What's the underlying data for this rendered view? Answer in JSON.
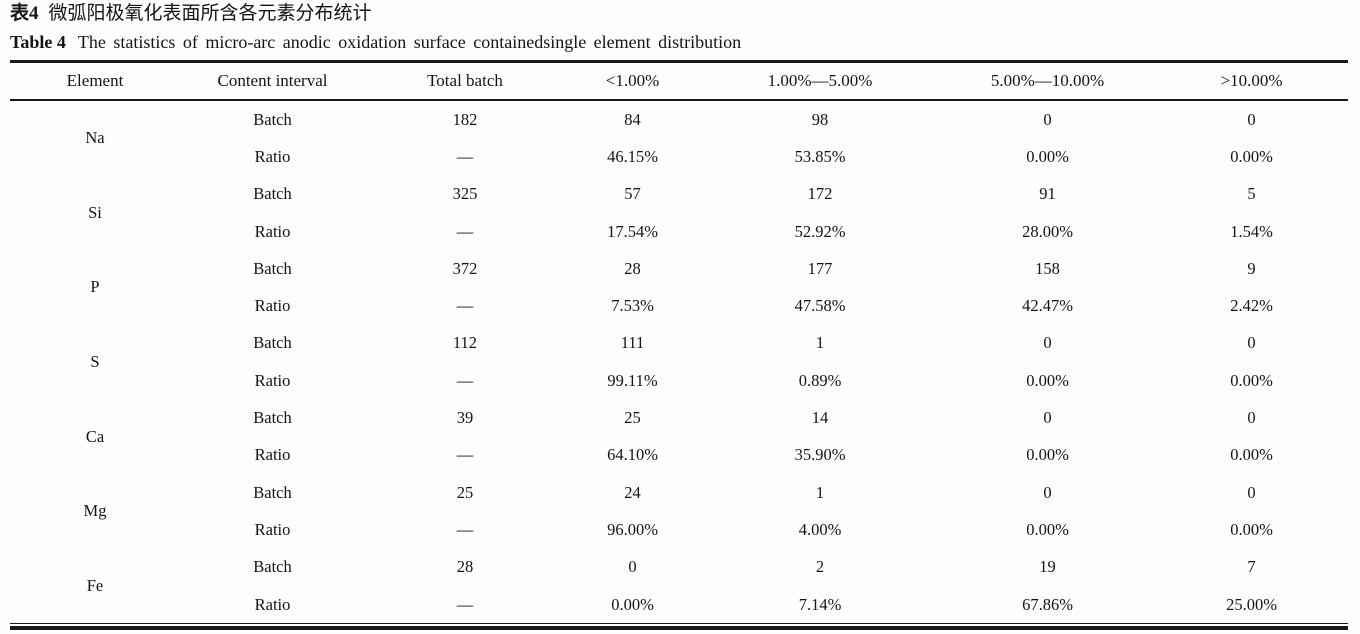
{
  "page": {
    "title_cn_label": "表4",
    "title_cn_text": "微弧阳极氧化表面所含各元素分布统计",
    "title_en_label": "Table 4",
    "title_en_text": "The statistics of micro-arc anodic oxidation surface containedsingle element distribution"
  },
  "table": {
    "columns": [
      "Element",
      "Content interval",
      "Total batch",
      "<1.00%",
      "1.00%—5.00%",
      "5.00%—10.00%",
      ">10.00%"
    ],
    "row_labels": {
      "batch": "Batch",
      "ratio": "Ratio"
    },
    "groups": [
      {
        "element": "Na",
        "batch": [
          "182",
          "84",
          "98",
          "0",
          "0"
        ],
        "ratio": [
          "—",
          "46.15%",
          "53.85%",
          "0.00%",
          "0.00%"
        ]
      },
      {
        "element": "Si",
        "batch": [
          "325",
          "57",
          "172",
          "91",
          "5"
        ],
        "ratio": [
          "—",
          "17.54%",
          "52.92%",
          "28.00%",
          "1.54%"
        ]
      },
      {
        "element": "P",
        "batch": [
          "372",
          "28",
          "177",
          "158",
          "9"
        ],
        "ratio": [
          "—",
          "7.53%",
          "47.58%",
          "42.47%",
          "2.42%"
        ]
      },
      {
        "element": "S",
        "batch": [
          "112",
          "111",
          "1",
          "0",
          "0"
        ],
        "ratio": [
          "—",
          "99.11%",
          "0.89%",
          "0.00%",
          "0.00%"
        ]
      },
      {
        "element": "Ca",
        "batch": [
          "39",
          "25",
          "14",
          "0",
          "0"
        ],
        "ratio": [
          "—",
          "64.10%",
          "35.90%",
          "0.00%",
          "0.00%"
        ]
      },
      {
        "element": "Mg",
        "batch": [
          "25",
          "24",
          "1",
          "0",
          "0"
        ],
        "ratio": [
          "—",
          "96.00%",
          "4.00%",
          "0.00%",
          "0.00%"
        ]
      },
      {
        "element": "Fe",
        "batch": [
          "28",
          "0",
          "2",
          "19",
          "7"
        ],
        "ratio": [
          "—",
          "0.00%",
          "7.14%",
          "67.86%",
          "25.00%"
        ]
      }
    ]
  }
}
